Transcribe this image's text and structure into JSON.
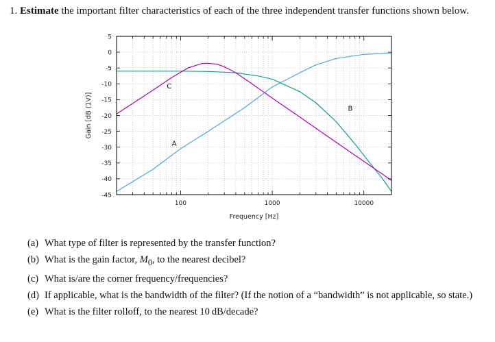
{
  "problem": {
    "number": "1.",
    "bold_lead": "Estimate",
    "text": " the important filter characteristics of each of the three independent transfer functions shown below."
  },
  "chart_data": {
    "type": "line",
    "xlabel": "Frequency [Hz]",
    "ylabel": "Gain [dB (1V)]",
    "xscale": "log",
    "xlim": [
      20,
      20000
    ],
    "ylim": [
      -45,
      5
    ],
    "xticks": [
      100,
      1000,
      10000
    ],
    "xtick_labels": [
      "100",
      "1000",
      "10000"
    ],
    "yticks": [
      5,
      0,
      -5,
      -10,
      -15,
      -20,
      -25,
      -30,
      -35,
      -40,
      -45
    ],
    "ytick_labels": [
      "5",
      "0",
      "-5",
      "-10",
      "-15",
      "-20",
      "-25",
      "-30",
      "-35",
      "-40",
      "-45"
    ],
    "grid": true,
    "series": [
      {
        "name": "A",
        "color": "#4aa8d8",
        "x": [
          20,
          50,
          100,
          200,
          500,
          1000,
          2000,
          3000,
          5000,
          10000,
          20000
        ],
        "y": [
          -44,
          -37,
          -30.5,
          -25,
          -17.5,
          -11,
          -6.5,
          -4,
          -2,
          -0.7,
          -0.3
        ],
        "label_at": [
          85,
          -29.5
        ]
      },
      {
        "name": "B",
        "color": "#11a08c",
        "x": [
          20,
          50,
          100,
          200,
          400,
          700,
          1000,
          2000,
          3000,
          5000,
          8000,
          12000,
          16000,
          20000
        ],
        "y": [
          -6,
          -6,
          -6,
          -6.1,
          -6.5,
          -7.5,
          -8.5,
          -12.5,
          -16,
          -22,
          -29,
          -35.5,
          -40,
          -44
        ],
        "label_at": [
          7100,
          -18.5
        ]
      },
      {
        "name": "C",
        "color": "#b200b2",
        "x": [
          20,
          50,
          80,
          120,
          170,
          200,
          250,
          300,
          400,
          600,
          1000,
          2000,
          5000,
          10000,
          20000
        ],
        "y": [
          -19.5,
          -12,
          -8,
          -5,
          -3.6,
          -3.5,
          -3.8,
          -4.6,
          -6.5,
          -10,
          -14.5,
          -20.5,
          -28.5,
          -34.5,
          -40.5
        ],
        "label_at": [
          75,
          -11.5
        ]
      }
    ]
  },
  "questions": [
    {
      "label": "(a)",
      "text": "What type of filter is represented by the transfer function?"
    },
    {
      "label": "(b)",
      "pre": "What is the gain factor, ",
      "italic": "M",
      "sub": "0",
      "post": ", to the nearest decibel?"
    },
    {
      "label": "(c)",
      "text": "What is/are the corner frequency/frequencies?"
    },
    {
      "label": "(d)",
      "text": "If applicable, what is the bandwidth of the filter? (If the notion of a “bandwidth” is not applicable, so state.)"
    },
    {
      "label": "(e)",
      "text": "What is the filter rolloff, to the nearest 10 dB/decade?"
    }
  ]
}
